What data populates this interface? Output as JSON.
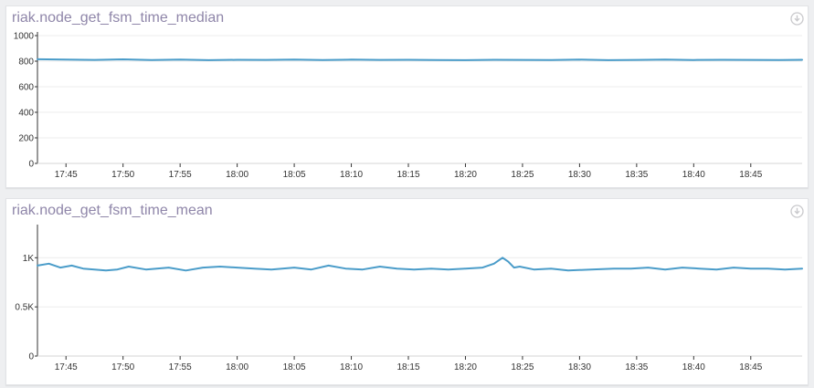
{
  "chart_data": [
    {
      "type": "line",
      "title": "riak.node_get_fsm_time_median",
      "x_ticks": [
        "17:45",
        "17:50",
        "17:55",
        "18:00",
        "18:05",
        "18:10",
        "18:15",
        "18:20",
        "18:25",
        "18:30",
        "18:35",
        "18:40",
        "18:45"
      ],
      "x_range": [
        "17:42:30",
        "18:49:30"
      ],
      "y_ticks": [
        "0",
        "200",
        "400",
        "600",
        "800",
        "1000"
      ],
      "ylim": [
        0,
        1000
      ],
      "grid": "horizontal",
      "series": [
        {
          "color": "#4a9cc9",
          "x": [
            "17:42:30",
            "17:45",
            "17:47:30",
            "17:50",
            "17:52:30",
            "17:55",
            "17:57:30",
            "18:00",
            "18:02:30",
            "18:05",
            "18:07:30",
            "18:10",
            "18:12:30",
            "18:15",
            "18:17:30",
            "18:20",
            "18:22:30",
            "18:25",
            "18:27:30",
            "18:30",
            "18:32:30",
            "18:35",
            "18:37:30",
            "18:40",
            "18:42:30",
            "18:45",
            "18:47:30",
            "18:49:30"
          ],
          "values": [
            815,
            812,
            810,
            814,
            809,
            812,
            808,
            811,
            810,
            813,
            809,
            812,
            810,
            811,
            809,
            808,
            811,
            810,
            809,
            812,
            808,
            810,
            812,
            809,
            811,
            810,
            809,
            811
          ]
        }
      ]
    },
    {
      "type": "line",
      "title": "riak.node_get_fsm_time_mean",
      "x_ticks": [
        "17:45",
        "17:50",
        "17:55",
        "18:00",
        "18:05",
        "18:10",
        "18:15",
        "18:20",
        "18:25",
        "18:30",
        "18:35",
        "18:40",
        "18:45"
      ],
      "x_range": [
        "17:42:30",
        "18:49:30"
      ],
      "y_ticks": [
        "0",
        "0.5K",
        "1K"
      ],
      "ylim": [
        0,
        1300
      ],
      "grid": "horizontal",
      "series": [
        {
          "color": "#4a9cc9",
          "x": [
            "17:42:30",
            "17:43:30",
            "17:44:30",
            "17:45:30",
            "17:46:30",
            "17:47:30",
            "17:48:30",
            "17:49:30",
            "17:50:30",
            "17:52",
            "17:54",
            "17:55:30",
            "17:57",
            "17:58:30",
            "18:00",
            "18:01:30",
            "18:03",
            "18:05",
            "18:06:30",
            "18:08",
            "18:09:30",
            "18:11",
            "18:12:30",
            "18:14",
            "18:15:30",
            "18:17",
            "18:18:30",
            "18:20",
            "18:21:30",
            "18:22:30",
            "18:23:15",
            "18:23:45",
            "18:24:15",
            "18:24:45",
            "18:26",
            "18:27:30",
            "18:29",
            "18:31",
            "18:33",
            "18:34:30",
            "18:36",
            "18:37:30",
            "18:39",
            "18:40:30",
            "18:42",
            "18:43:30",
            "18:45",
            "18:46:30",
            "18:48",
            "18:49:30"
          ],
          "values": [
            920,
            940,
            900,
            920,
            890,
            880,
            870,
            880,
            910,
            880,
            900,
            870,
            900,
            910,
            900,
            890,
            880,
            900,
            880,
            920,
            890,
            880,
            910,
            890,
            880,
            890,
            880,
            890,
            900,
            940,
            1000,
            960,
            900,
            910,
            880,
            890,
            870,
            880,
            890,
            890,
            900,
            880,
            900,
            890,
            880,
            900,
            890,
            890,
            880,
            890
          ]
        }
      ]
    }
  ]
}
